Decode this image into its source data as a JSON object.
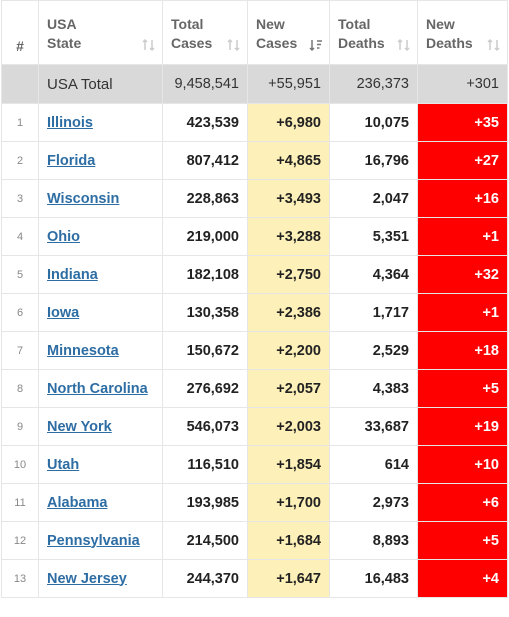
{
  "headers": {
    "index": "#",
    "state": [
      "USA",
      "State"
    ],
    "total_cases": [
      "Total",
      "Cases"
    ],
    "new_cases": [
      "New",
      "Cases"
    ],
    "total_deaths": [
      "Total",
      "Deaths"
    ],
    "new_deaths": [
      "New",
      "Deaths"
    ]
  },
  "colors": {
    "new_cases_bg": "#fdf0b8",
    "new_deaths_bg": "#ff0000",
    "total_row_bg": "#d9d9d9",
    "link": "#2d6da3"
  },
  "total": {
    "state": "USA Total",
    "total_cases": "9,458,541",
    "new_cases": "+55,951",
    "total_deaths": "236,373",
    "new_deaths": "+301"
  },
  "rows": [
    {
      "idx": "1",
      "state": "Illinois",
      "total_cases": "423,539",
      "new_cases": "+6,980",
      "total_deaths": "10,075",
      "new_deaths": "+35"
    },
    {
      "idx": "2",
      "state": "Florida",
      "total_cases": "807,412",
      "new_cases": "+4,865",
      "total_deaths": "16,796",
      "new_deaths": "+27"
    },
    {
      "idx": "3",
      "state": "Wisconsin",
      "total_cases": "228,863",
      "new_cases": "+3,493",
      "total_deaths": "2,047",
      "new_deaths": "+16"
    },
    {
      "idx": "4",
      "state": "Ohio",
      "total_cases": "219,000",
      "new_cases": "+3,288",
      "total_deaths": "5,351",
      "new_deaths": "+1"
    },
    {
      "idx": "5",
      "state": "Indiana",
      "total_cases": "182,108",
      "new_cases": "+2,750",
      "total_deaths": "4,364",
      "new_deaths": "+32"
    },
    {
      "idx": "6",
      "state": "Iowa",
      "total_cases": "130,358",
      "new_cases": "+2,386",
      "total_deaths": "1,717",
      "new_deaths": "+1"
    },
    {
      "idx": "7",
      "state": "Minnesota",
      "total_cases": "150,672",
      "new_cases": "+2,200",
      "total_deaths": "2,529",
      "new_deaths": "+18"
    },
    {
      "idx": "8",
      "state": "North Carolina",
      "total_cases": "276,692",
      "new_cases": "+2,057",
      "total_deaths": "4,383",
      "new_deaths": "+5"
    },
    {
      "idx": "9",
      "state": "New York",
      "total_cases": "546,073",
      "new_cases": "+2,003",
      "total_deaths": "33,687",
      "new_deaths": "+19"
    },
    {
      "idx": "10",
      "state": "Utah",
      "total_cases": "116,510",
      "new_cases": "+1,854",
      "total_deaths": "614",
      "new_deaths": "+10"
    },
    {
      "idx": "11",
      "state": "Alabama",
      "total_cases": "193,985",
      "new_cases": "+1,700",
      "total_deaths": "2,973",
      "new_deaths": "+6"
    },
    {
      "idx": "12",
      "state": "Pennsylvania",
      "total_cases": "214,500",
      "new_cases": "+1,684",
      "total_deaths": "8,893",
      "new_deaths": "+5"
    },
    {
      "idx": "13",
      "state": "New Jersey",
      "total_cases": "244,370",
      "new_cases": "+1,647",
      "total_deaths": "16,483",
      "new_deaths": "+4"
    }
  ]
}
